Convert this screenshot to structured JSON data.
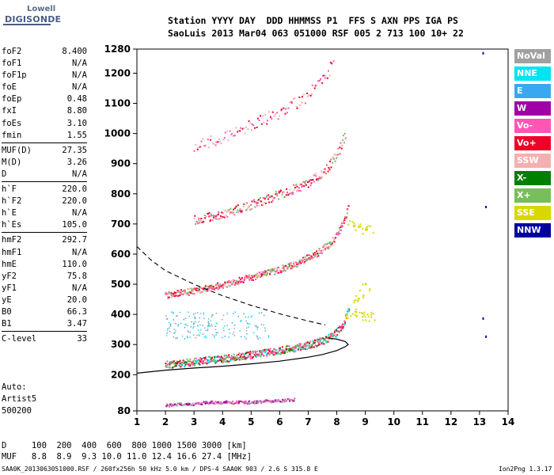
{
  "logo": {
    "line1": "Lowell",
    "line2": "DIGISONDE"
  },
  "header": {
    "labels": "Station YYYY DAY  DDD HHMMSS P1  FFS S AXN PPS IGA PS",
    "values": "SaoLuis 2013 Mar04 063 051000 RSF 005 2 713 100 10+ 22"
  },
  "params": {
    "group1": [
      {
        "name": "foF2",
        "value": "8.400"
      },
      {
        "name": "foF1",
        "value": "N/A"
      },
      {
        "name": "foF1p",
        "value": "N/A"
      },
      {
        "name": "foE",
        "value": "N/A"
      },
      {
        "name": "foEp",
        "value": "0.48"
      },
      {
        "name": "fxI",
        "value": "8.80"
      },
      {
        "name": "foEs",
        "value": "3.10"
      },
      {
        "name": "fmin",
        "value": "1.55"
      }
    ],
    "group2": [
      {
        "name": "MUF(D)",
        "value": "27.35"
      },
      {
        "name": "M(D)",
        "value": "3.26"
      },
      {
        "name": "D",
        "value": "N/A"
      }
    ],
    "group3": [
      {
        "name": "h`F",
        "value": "220.0"
      },
      {
        "name": "h`F2",
        "value": "220.0"
      },
      {
        "name": "h`E",
        "value": "N/A"
      },
      {
        "name": "h`Es",
        "value": "105.0"
      }
    ],
    "group4": [
      {
        "name": "hmF2",
        "value": "292.7"
      },
      {
        "name": "hmF1",
        "value": "N/A"
      },
      {
        "name": "hmE",
        "value": "110.0"
      },
      {
        "name": "yF2",
        "value": "75.8"
      },
      {
        "name": "yF1",
        "value": "N/A"
      },
      {
        "name": "yE",
        "value": "20.0"
      },
      {
        "name": "B0",
        "value": "66.3"
      },
      {
        "name": "B1",
        "value": "3.47"
      }
    ],
    "group5": [
      {
        "name": "C-level",
        "value": "33"
      }
    ]
  },
  "auto": {
    "line1": "Auto:",
    "line2": "Artist5",
    "line3": "500200"
  },
  "muf_table": {
    "d_row": "D     100  200  400  600  800 1000 1500 3000 [km]",
    "muf_row": "MUF   8.8  8.9  9.3 10.0 11.0 12.4 16.6 27.4 [MHz]"
  },
  "footer": {
    "left": "SAA0K_2013063051000.RSF / 260fx256h 50 kHz 5.0 km / DPS-4 SAA0K 903 / 2.6 S 315.8 E",
    "right": "Ion2Png 1.3.17"
  },
  "legend": [
    {
      "label": "NoVal",
      "color": "#a0a0a0"
    },
    {
      "label": "NNE",
      "color": "#00e4f0"
    },
    {
      "label": "E",
      "color": "#3aa8f0"
    },
    {
      "label": "W",
      "color": "#a000a8"
    },
    {
      "label": "Vo-",
      "color": "#ff55b4"
    },
    {
      "label": "Vo+",
      "color": "#ee0028"
    },
    {
      "label": "SSW",
      "color": "#f4b0b0"
    },
    {
      "label": "X-",
      "color": "#008000"
    },
    {
      "label": "X+",
      "color": "#78be5a"
    },
    {
      "label": "SSE",
      "color": "#d8d800"
    },
    {
      "label": "NNW",
      "color": "#0000a0"
    }
  ],
  "chart_data": {
    "type": "scatter",
    "xlim": [
      1,
      14
    ],
    "ylim": [
      80,
      1280
    ],
    "x_ticks": [
      1,
      2,
      3,
      4,
      5,
      6,
      7,
      8,
      9,
      10,
      11,
      12,
      13,
      14
    ],
    "y_ticks": [
      80,
      200,
      300,
      400,
      500,
      600,
      700,
      800,
      900,
      1000,
      1100,
      1200,
      1280
    ],
    "y_tick_labels": [
      "80",
      "200",
      "300",
      "400",
      "500",
      "600",
      "700",
      "800",
      "900",
      "1000",
      "1100",
      "1200",
      "1280"
    ],
    "grid": false,
    "legend_position": "right",
    "trace_F2": {
      "name": "F2 trace (1st hop)",
      "x": [
        2.0,
        2.5,
        3.0,
        3.5,
        4.0,
        4.5,
        5.0,
        5.5,
        6.0,
        6.5,
        7.0,
        7.5,
        7.8,
        8.0,
        8.2,
        8.3,
        8.4
      ],
      "y": [
        235,
        240,
        245,
        250,
        255,
        262,
        268,
        275,
        282,
        290,
        300,
        315,
        330,
        345,
        365,
        390,
        420
      ]
    },
    "trace_F2_2hop": {
      "name": "F2 trace (2nd hop)",
      "x": [
        2.0,
        3.0,
        4.0,
        5.0,
        5.8,
        6.6,
        7.2,
        7.8,
        8.2,
        8.4
      ],
      "y": [
        465,
        480,
        500,
        525,
        545,
        570,
        600,
        640,
        700,
        760
      ]
    },
    "trace_F2_3hop": {
      "name": "F2 trace (3rd hop)",
      "x": [
        3.0,
        4.0,
        5.0,
        6.0,
        6.8,
        7.5,
        8.0,
        8.3
      ],
      "y": [
        715,
        735,
        765,
        800,
        830,
        870,
        930,
        1000
      ]
    },
    "trace_F2_4hop": {
      "name": "F2 trace (4th hop)",
      "x": [
        3.0,
        4.0,
        5.0,
        6.0,
        7.0,
        7.5,
        7.9
      ],
      "y": [
        960,
        990,
        1030,
        1070,
        1130,
        1180,
        1240
      ]
    },
    "trace_Es": {
      "name": "Es trace",
      "x": [
        2.0,
        2.5,
        3.0,
        3.5,
        4.0,
        4.5,
        5.0,
        5.5,
        6.0,
        6.5
      ],
      "y": [
        100,
        105,
        105,
        110,
        110,
        110,
        110,
        115,
        115,
        120
      ]
    },
    "profile_solid": {
      "name": "Profile (solid)",
      "x": [
        1.0,
        2.0,
        3.0,
        4.0,
        5.0,
        6.0,
        7.0,
        7.5,
        8.0,
        8.3,
        8.4,
        8.3,
        8.0,
        7.7
      ],
      "y": [
        205,
        215,
        222,
        228,
        236,
        245,
        258,
        267,
        280,
        293,
        300,
        310,
        318,
        322
      ]
    },
    "profile_dashed": {
      "name": "Profile (dashed)",
      "x": [
        1.0,
        1.5,
        2.0,
        3.0,
        4.0,
        5.0,
        6.0,
        7.0,
        7.6
      ],
      "y": [
        625,
        580,
        545,
        500,
        462,
        430,
        402,
        378,
        365
      ]
    },
    "scatter_8_9": {
      "name": "SSE cluster",
      "x": [
        8.4,
        8.6,
        8.8,
        9.0,
        9.2,
        8.5,
        8.7,
        8.9,
        9.1,
        8.6,
        8.8,
        9.0
      ],
      "y": [
        395,
        410,
        400,
        390,
        395,
        700,
        690,
        680,
        685,
        450,
        470,
        490
      ]
    },
    "scatter_ext": {
      "name": "E-layer region echoes",
      "x": [
        2.0,
        2.5,
        3.0,
        3.5,
        4.0,
        4.5,
        5.0,
        5.5
      ],
      "y": [
        360,
        380,
        350,
        370,
        360,
        340,
        380,
        350
      ]
    },
    "isolated": {
      "name": "Isolated points",
      "x": [
        13.1,
        13.2,
        13.1,
        13.2
      ],
      "y": [
        1270,
        760,
        390,
        330
      ]
    }
  }
}
